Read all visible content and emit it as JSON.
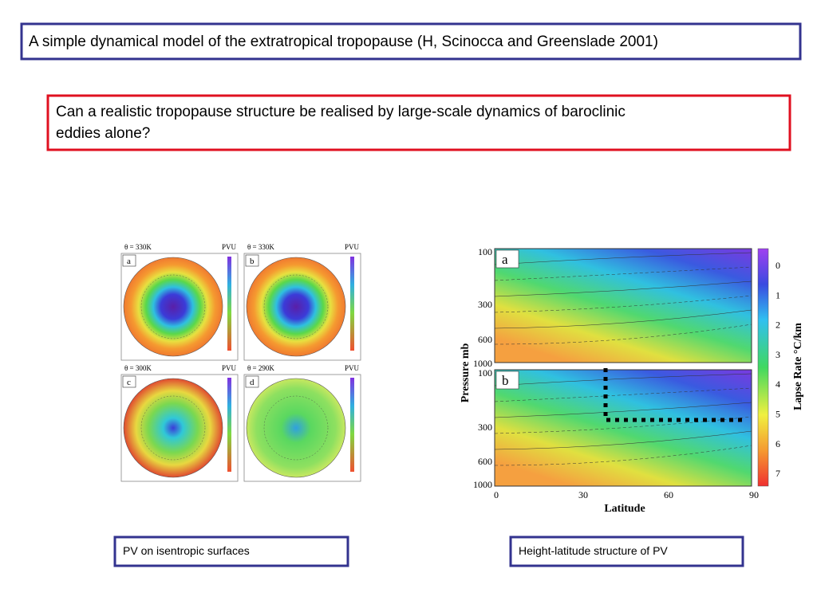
{
  "title": "A simple dynamical model of the extratropical tropopause (H, Scinocca and Greenslade 2001)",
  "question": [
    "Can a realistic tropopause structure be realised by large-scale dynamics of baroclinic",
    "eddies alone?"
  ],
  "left_figure": {
    "panels": [
      {
        "letter": "a",
        "theta": "θ = 330K",
        "unit": "PVU"
      },
      {
        "letter": "b",
        "theta": "θ = 330K",
        "unit": "PVU"
      },
      {
        "letter": "c",
        "theta": "θ = 300K",
        "unit": "PVU"
      },
      {
        "letter": "d",
        "theta": "θ = 290K",
        "unit": "PVU"
      }
    ],
    "caption": "PV on isentropic surfaces"
  },
  "right_figure": {
    "panels": [
      {
        "letter": "a"
      },
      {
        "letter": "b"
      }
    ],
    "pressure_ticks": [
      100,
      300,
      600,
      1000
    ],
    "y_label": "Pressure mb",
    "x_ticks": [
      0,
      30,
      60,
      90
    ],
    "x_label": "Latitude",
    "colorbar_ticks": [
      0,
      1,
      2,
      3,
      4,
      5,
      6,
      7
    ],
    "colorbar_label": "Lapse Rate °C/km",
    "caption": "Height-latitude structure of PV"
  }
}
